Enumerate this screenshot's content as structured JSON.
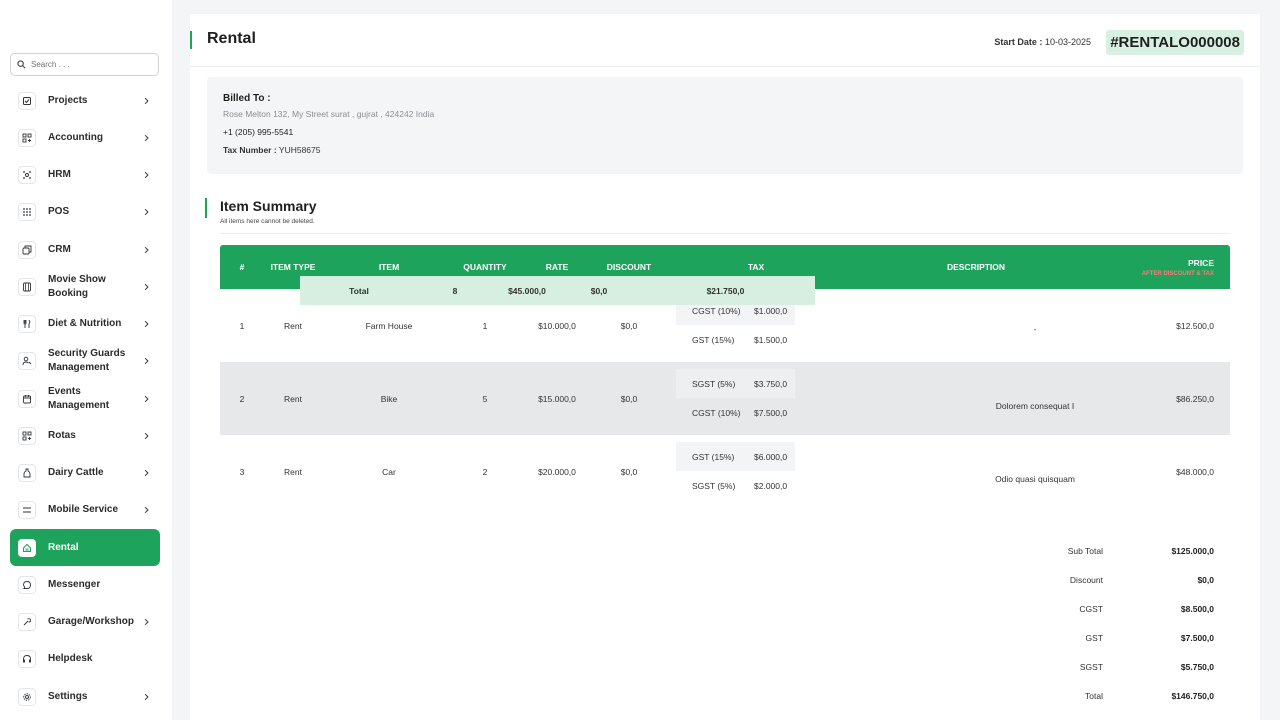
{
  "search": {
    "placeholder": "Search . . ."
  },
  "sidebar": {
    "items": [
      {
        "label": "Projects",
        "icon": "checkbox-icon",
        "chevron": true
      },
      {
        "label": "Accounting",
        "icon": "grid-icon",
        "chevron": true
      },
      {
        "label": "HRM",
        "icon": "users-icon",
        "chevron": true
      },
      {
        "label": "POS",
        "icon": "dots-grid-icon",
        "chevron": true
      },
      {
        "label": "CRM",
        "icon": "layers-icon",
        "chevron": true
      },
      {
        "label": "Movie Show Booking",
        "icon": "film-icon",
        "chevron": true
      },
      {
        "label": "Diet & Nutrition",
        "icon": "utensils-icon",
        "chevron": true
      },
      {
        "label": "Security Guards Management",
        "icon": "user-shield-icon",
        "chevron": true
      },
      {
        "label": "Events Management",
        "icon": "calendar-icon",
        "chevron": true
      },
      {
        "label": "Rotas",
        "icon": "grid-icon",
        "chevron": true
      },
      {
        "label": "Dairy Cattle",
        "icon": "bottle-icon",
        "chevron": true
      },
      {
        "label": "Mobile Service",
        "icon": "menu-icon",
        "chevron": true
      },
      {
        "label": "Rental",
        "icon": "home-icon",
        "chevron": false,
        "active": true
      },
      {
        "label": "Messenger",
        "icon": "chat-icon",
        "chevron": false
      },
      {
        "label": "Garage/Workshop",
        "icon": "wrench-icon",
        "chevron": true
      },
      {
        "label": "Helpdesk",
        "icon": "headset-icon",
        "chevron": false
      },
      {
        "label": "Settings",
        "icon": "gear-icon",
        "chevron": true
      }
    ]
  },
  "header": {
    "title": "Rental",
    "start_date_label": "Start Date :",
    "start_date_value": "10-03-2025",
    "rental_id": "#RENTALO000008"
  },
  "billed": {
    "title": "Billed To :",
    "address": "Rose Melton 132, My Street surat , gujrat , 424242 India",
    "phone": "+1 (205) 995-5541",
    "tax_label": "Tax Number :",
    "tax_value": "YUH58675"
  },
  "summary": {
    "title": "Item Summary",
    "subtitle": "All items here cannot be deleted."
  },
  "table": {
    "headers": {
      "num": "#",
      "item_type": "ITEM TYPE",
      "item": "ITEM",
      "quantity": "QUANTITY",
      "rate": "RATE",
      "discount": "DISCOUNT",
      "tax": "TAX",
      "description": "DESCRIPTION",
      "price": "PRICE",
      "price_note": "AFTER DISCOUNT & TAX"
    },
    "rows": [
      {
        "num": "1",
        "item_type": "Rent",
        "item": "Farm House",
        "quantity": "1",
        "rate": "$10.000,0",
        "discount": "$0,0",
        "taxes": [
          {
            "name": "CGST (10%)",
            "amount": "$1.000,0"
          },
          {
            "name": "GST (15%)",
            "amount": "$1.500,0"
          }
        ],
        "description": "-",
        "price": "$12.500,0"
      },
      {
        "num": "2",
        "item_type": "Rent",
        "item": "Bike",
        "quantity": "5",
        "rate": "$15.000,0",
        "discount": "$0,0",
        "taxes": [
          {
            "name": "SGST (5%)",
            "amount": "$3.750,0"
          },
          {
            "name": "CGST (10%)",
            "amount": "$7.500,0"
          }
        ],
        "description": "Dolorem consequat I",
        "price": "$86.250,0"
      },
      {
        "num": "3",
        "item_type": "Rent",
        "item": "Car",
        "quantity": "2",
        "rate": "$20.000,0",
        "discount": "$0,0",
        "taxes": [
          {
            "name": "GST (15%)",
            "amount": "$6.000,0"
          },
          {
            "name": "SGST (5%)",
            "amount": "$2.000,0"
          }
        ],
        "description": "Odio quasi quisquam",
        "price": "$48.000,0"
      }
    ],
    "total": {
      "label": "Total",
      "quantity": "8",
      "rate": "$45.000,0",
      "discount": "$0,0",
      "tax": "$21.750,0"
    }
  },
  "totals": [
    {
      "label": "Sub Total",
      "value": "$125.000,0"
    },
    {
      "label": "Discount",
      "value": "$0,0"
    },
    {
      "label": "CGST",
      "value": "$8.500,0"
    },
    {
      "label": "GST",
      "value": "$7.500,0"
    },
    {
      "label": "SGST",
      "value": "$5.750,0"
    },
    {
      "label": "Total",
      "value": "$146.750,0"
    }
  ],
  "colors": {
    "accent": "#1ea35c",
    "total_row_bg": "#d6efe0",
    "id_badge_bg": "#d7f0e2",
    "price_note": "#ff7a7a"
  }
}
